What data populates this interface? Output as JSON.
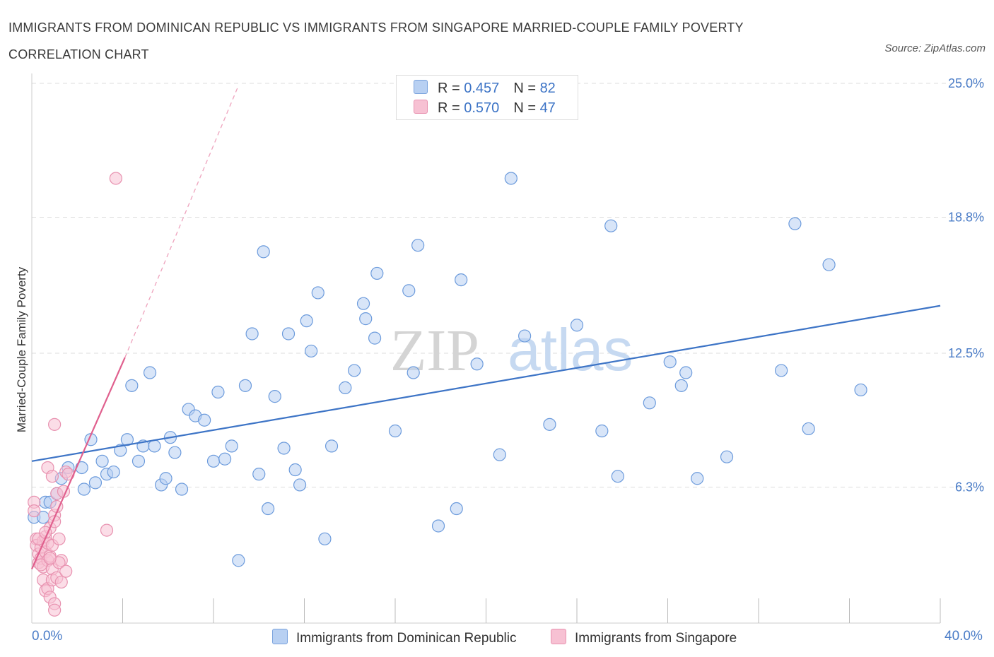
{
  "header": {
    "title": "IMMIGRANTS FROM DOMINICAN REPUBLIC VS IMMIGRANTS FROM SINGAPORE MARRIED-COUPLE FAMILY POVERTY CORRELATION CHART",
    "source": "Source: ZipAtlas.com"
  },
  "colors": {
    "blue": "#3d74c6",
    "blue_fill": "#b8d0f2",
    "pink": "#e0608e",
    "pink_fill": "#f7c1d3",
    "grid": "#dddddd",
    "axis_text": "#4a7cc7"
  },
  "legend_top": {
    "rows": [
      {
        "r_label": "R = ",
        "r_value": "0.457",
        "n_label": "N = ",
        "n_value": "82",
        "series": "blue"
      },
      {
        "r_label": "R = ",
        "r_value": "0.570",
        "n_label": "N = ",
        "n_value": "47",
        "series": "pink"
      }
    ]
  },
  "legend_bottom": {
    "series1": "Immigrants from Dominican Republic",
    "series2": "Immigrants from Singapore"
  },
  "watermark": {
    "zip": "ZIP",
    "atlas": "atlas"
  },
  "chart_data": {
    "type": "scatter",
    "title": "IMMIGRANTS FROM DOMINICAN REPUBLIC VS IMMIGRANTS FROM SINGAPORE MARRIED-COUPLE FAMILY POVERTY CORRELATION CHART",
    "xlabel": "",
    "ylabel": "Married-Couple Family Poverty",
    "xlim": [
      0,
      40
    ],
    "ylim": [
      0,
      25
    ],
    "x_tick_labels": [
      "0.0%",
      "40.0%"
    ],
    "y_ticks": [
      6.3,
      12.5,
      18.8,
      25.0
    ],
    "y_tick_labels": [
      "6.3%",
      "12.5%",
      "18.8%",
      "25.0%"
    ],
    "legend": "top-center",
    "series": [
      {
        "name": "Immigrants from Dominican Republic",
        "color": "blue",
        "R": 0.457,
        "N": 82,
        "trend": {
          "x": [
            0,
            40
          ],
          "y": [
            7.5,
            14.7
          ],
          "style": "solid"
        },
        "points": [
          [
            0.1,
            4.9
          ],
          [
            0.5,
            4.9
          ],
          [
            0.6,
            5.6
          ],
          [
            0.8,
            5.6
          ],
          [
            1.1,
            6.0
          ],
          [
            1.3,
            6.7
          ],
          [
            1.6,
            7.2
          ],
          [
            2.3,
            6.2
          ],
          [
            2.2,
            7.2
          ],
          [
            2.6,
            8.5
          ],
          [
            2.8,
            6.5
          ],
          [
            3.1,
            7.5
          ],
          [
            3.3,
            6.9
          ],
          [
            3.6,
            7.0
          ],
          [
            3.9,
            8.0
          ],
          [
            4.2,
            8.5
          ],
          [
            4.4,
            11.0
          ],
          [
            4.7,
            7.5
          ],
          [
            4.9,
            8.2
          ],
          [
            5.2,
            11.6
          ],
          [
            5.4,
            8.2
          ],
          [
            5.7,
            6.4
          ],
          [
            5.9,
            6.7
          ],
          [
            6.1,
            8.6
          ],
          [
            6.3,
            7.9
          ],
          [
            6.6,
            6.2
          ],
          [
            6.9,
            9.9
          ],
          [
            7.2,
            9.6
          ],
          [
            7.6,
            9.4
          ],
          [
            8.0,
            7.5
          ],
          [
            8.2,
            10.7
          ],
          [
            8.5,
            7.6
          ],
          [
            8.8,
            8.2
          ],
          [
            9.1,
            2.9
          ],
          [
            9.4,
            11.0
          ],
          [
            9.7,
            13.4
          ],
          [
            10.0,
            6.9
          ],
          [
            10.2,
            17.2
          ],
          [
            10.4,
            5.3
          ],
          [
            10.7,
            10.5
          ],
          [
            11.1,
            8.1
          ],
          [
            11.3,
            13.4
          ],
          [
            11.6,
            7.1
          ],
          [
            11.8,
            6.4
          ],
          [
            12.1,
            14.0
          ],
          [
            12.3,
            12.6
          ],
          [
            12.6,
            15.3
          ],
          [
            12.9,
            3.9
          ],
          [
            13.2,
            8.2
          ],
          [
            13.8,
            10.9
          ],
          [
            14.2,
            11.7
          ],
          [
            14.6,
            14.8
          ],
          [
            14.7,
            14.1
          ],
          [
            15.1,
            13.2
          ],
          [
            15.2,
            16.2
          ],
          [
            16.0,
            8.9
          ],
          [
            16.6,
            15.4
          ],
          [
            16.8,
            11.6
          ],
          [
            17.0,
            17.5
          ],
          [
            17.9,
            4.5
          ],
          [
            18.7,
            5.3
          ],
          [
            18.9,
            15.9
          ],
          [
            19.6,
            12.0
          ],
          [
            20.6,
            7.8
          ],
          [
            21.1,
            20.6
          ],
          [
            21.7,
            13.3
          ],
          [
            22.8,
            9.2
          ],
          [
            24.0,
            13.8
          ],
          [
            25.1,
            8.9
          ],
          [
            25.5,
            18.4
          ],
          [
            25.8,
            6.8
          ],
          [
            27.2,
            10.2
          ],
          [
            28.1,
            12.1
          ],
          [
            28.6,
            11.0
          ],
          [
            28.8,
            11.6
          ],
          [
            29.3,
            6.7
          ],
          [
            30.6,
            7.7
          ],
          [
            33.0,
            11.7
          ],
          [
            33.6,
            18.5
          ],
          [
            34.2,
            9.0
          ],
          [
            35.1,
            16.6
          ],
          [
            36.5,
            10.8
          ]
        ]
      },
      {
        "name": "Immigrants from Singapore",
        "color": "pink",
        "R": 0.57,
        "N": 47,
        "trend": {
          "x": [
            0,
            4.1
          ],
          "y": [
            2.5,
            12.3
          ],
          "style": "solid"
        },
        "trend_extension": {
          "x": [
            4.1,
            9.1
          ],
          "y": [
            12.3,
            24.9
          ],
          "style": "dashed"
        },
        "points": [
          [
            0.1,
            5.6
          ],
          [
            0.1,
            5.2
          ],
          [
            0.2,
            3.9
          ],
          [
            0.2,
            3.6
          ],
          [
            0.3,
            3.2
          ],
          [
            0.3,
            2.8
          ],
          [
            0.4,
            3.5
          ],
          [
            0.4,
            3.0
          ],
          [
            0.5,
            3.8
          ],
          [
            0.5,
            2.6
          ],
          [
            0.6,
            4.0
          ],
          [
            0.6,
            3.3
          ],
          [
            0.7,
            3.7
          ],
          [
            0.7,
            2.9
          ],
          [
            0.8,
            4.4
          ],
          [
            0.8,
            3.1
          ],
          [
            0.9,
            3.6
          ],
          [
            0.9,
            2.5
          ],
          [
            1.0,
            5.0
          ],
          [
            1.0,
            4.7
          ],
          [
            1.1,
            6.0
          ],
          [
            1.1,
            5.4
          ],
          [
            1.2,
            3.9
          ],
          [
            1.3,
            2.9
          ],
          [
            1.4,
            6.1
          ],
          [
            1.5,
            7.0
          ],
          [
            1.0,
            9.2
          ],
          [
            0.7,
            7.2
          ],
          [
            0.9,
            6.8
          ],
          [
            1.6,
            6.9
          ],
          [
            0.5,
            2.0
          ],
          [
            0.6,
            1.5
          ],
          [
            0.7,
            1.6
          ],
          [
            0.8,
            1.2
          ],
          [
            0.9,
            2.0
          ],
          [
            1.0,
            0.9
          ],
          [
            1.0,
            0.6
          ],
          [
            1.1,
            2.1
          ],
          [
            1.2,
            2.8
          ],
          [
            1.3,
            1.9
          ],
          [
            1.5,
            2.4
          ],
          [
            3.3,
            4.3
          ],
          [
            3.7,
            20.6
          ],
          [
            0.3,
            3.9
          ],
          [
            0.4,
            2.7
          ],
          [
            0.6,
            4.2
          ],
          [
            0.8,
            3.0
          ]
        ]
      }
    ]
  }
}
